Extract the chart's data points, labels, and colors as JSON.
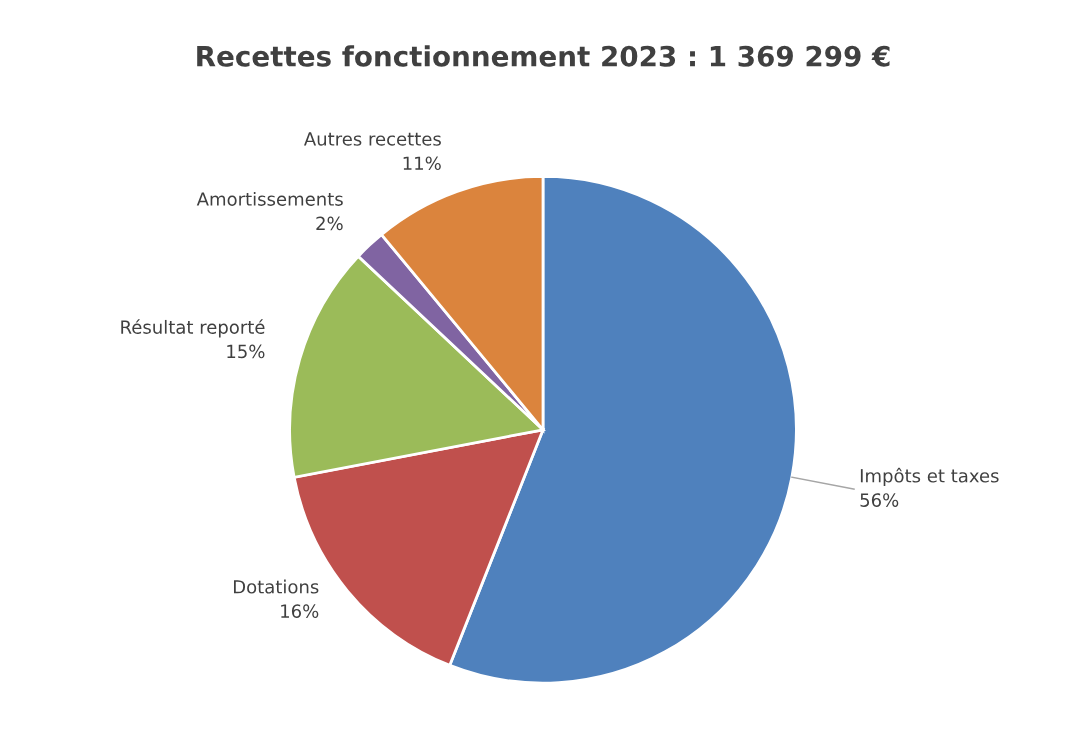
{
  "chart_data": {
    "type": "pie",
    "title": "Recettes fonctionnement 2023 : 1 369 299 €",
    "categories": [
      "Impôts et taxes",
      "Dotations",
      "Résultat reporté",
      "Amortissements",
      "Autres recettes"
    ],
    "values": [
      56,
      16,
      15,
      2,
      11
    ],
    "value_labels": [
      "56%",
      "16%",
      "15%",
      "2%",
      "11%"
    ],
    "colors": [
      "#4f81bd",
      "#c0504d",
      "#9bbb59",
      "#8064a2",
      "#db843d"
    ],
    "legend": false
  }
}
